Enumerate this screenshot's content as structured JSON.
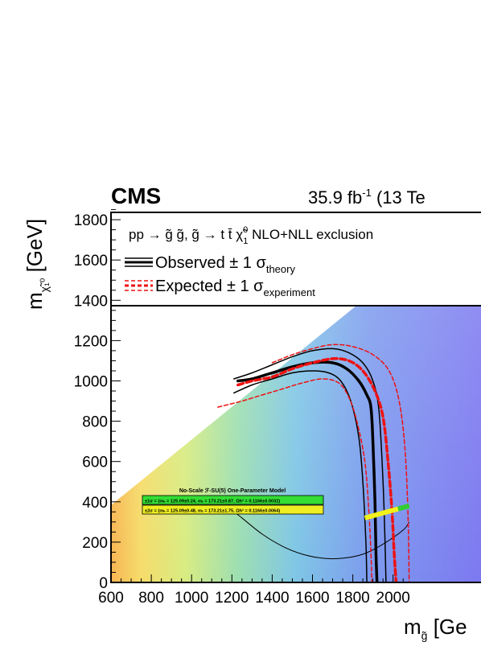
{
  "header": {
    "experiment": "CMS",
    "lumi_value": "35.9 fb",
    "lumi_exp": "-1",
    "lumi_energy": " (13 Te"
  },
  "legend": {
    "process": "pp → g̃ g̃, g̃ → t t̄ χ̃",
    "process_sup": "0",
    "process_sub": "1",
    "process_tail": "  NLO+NLL exclusion",
    "observed": "Observed ± 1 σ",
    "observed_sub": "theory",
    "expected": "Expected ± 1 σ",
    "expected_sub": "experiment"
  },
  "inset": {
    "title": "No-Scale ℱ-SU(5) One-Parameter Model",
    "row1": "±1σ = (mₕ = 125.09±0.24, mₜ = 173.21±0.87, Ωh² = 0.1166±0.0032)",
    "row2": "±2σ = (mₕ = 125.09±0.48, mₜ = 173.21±1.75, Ωh² = 0.1166±0.0064)",
    "row1_color": "#33dd33",
    "row2_color": "#eeee22"
  },
  "colors": {
    "observed": "#000000",
    "expected": "#ee1111",
    "band_yellow": "#f2f21a",
    "band_green": "#33cc33"
  },
  "chart_data": {
    "type": "heatmap",
    "xlabel": "m",
    "xlabel_sub": "g̃",
    "xlabel_tail": " [Ge",
    "ylabel": "m",
    "ylabel_sub": "χ̃₁⁰",
    "ylabel_tail": " [GeV]",
    "xlim": [
      600,
      2080
    ],
    "ylim": [
      0,
      1900
    ],
    "xticks": [
      "600",
      "800",
      "1000",
      "1200",
      "1400",
      "1600",
      "1800",
      "2000"
    ],
    "yticks": [
      "0",
      "200",
      "400",
      "600",
      "800",
      "1000",
      "1200",
      "1400",
      "1600",
      "1800"
    ],
    "series": [
      {
        "name": "Observed",
        "style": "solid-thick",
        "x": [
          1230,
          1300,
          1400,
          1500,
          1600,
          1700,
          1770,
          1830,
          1870,
          1890,
          1900,
          1910,
          1915,
          1920
        ],
        "y": [
          1000,
          1010,
          1040,
          1070,
          1090,
          1090,
          1060,
          1000,
          930,
          870,
          700,
          400,
          150,
          0
        ]
      },
      {
        "name": "Observed +1σ",
        "style": "solid-thin",
        "x": [
          1210,
          1300,
          1400,
          1500,
          1600,
          1700,
          1780,
          1850,
          1900,
          1930,
          1950,
          1960,
          1965
        ],
        "y": [
          1010,
          1040,
          1080,
          1120,
          1150,
          1160,
          1140,
          1090,
          1000,
          850,
          500,
          200,
          0
        ]
      },
      {
        "name": "Observed -1σ",
        "style": "solid-thin",
        "x": [
          1210,
          1300,
          1400,
          1500,
          1600,
          1680,
          1740,
          1790,
          1830,
          1850,
          1865,
          1870
        ],
        "y": [
          940,
          980,
          1010,
          1040,
          1050,
          1040,
          1000,
          900,
          720,
          500,
          200,
          0
        ]
      },
      {
        "name": "Expected",
        "style": "dashed-thick",
        "x": [
          1230,
          1300,
          1400,
          1500,
          1600,
          1700,
          1780,
          1850,
          1910,
          1950,
          1975,
          1995,
          2005,
          2015
        ],
        "y": [
          980,
          1000,
          1020,
          1060,
          1090,
          1110,
          1100,
          1050,
          950,
          820,
          600,
          350,
          150,
          0
        ]
      },
      {
        "name": "Expected +1σ",
        "style": "dashed-thin",
        "x": [
          1400,
          1500,
          1600,
          1700,
          1800,
          1900,
          1980,
          2030,
          2060,
          2075,
          2080
        ],
        "y": [
          1090,
          1130,
          1160,
          1180,
          1170,
          1130,
          1050,
          900,
          650,
          300,
          0
        ]
      },
      {
        "name": "Expected -1σ",
        "style": "dashed-thin",
        "x": [
          1130,
          1250,
          1350,
          1450,
          1550,
          1650,
          1730,
          1780,
          1820,
          1860,
          1880,
          1890,
          1895
        ],
        "y": [
          870,
          900,
          930,
          960,
          990,
          1010,
          990,
          920,
          800,
          600,
          350,
          150,
          0
        ]
      }
    ],
    "arc": {
      "x": [
        1185,
        1190,
        1250,
        1350,
        1450,
        1550,
        1650,
        1750,
        1850,
        1950,
        2050,
        2080
      ],
      "y": [
        400,
        370,
        320,
        240,
        180,
        140,
        120,
        120,
        140,
        190,
        260,
        300
      ]
    },
    "band": {
      "x": [
        1860,
        2080
      ],
      "y": [
        320,
        380
      ]
    },
    "grid": false,
    "legend_position": "top"
  }
}
